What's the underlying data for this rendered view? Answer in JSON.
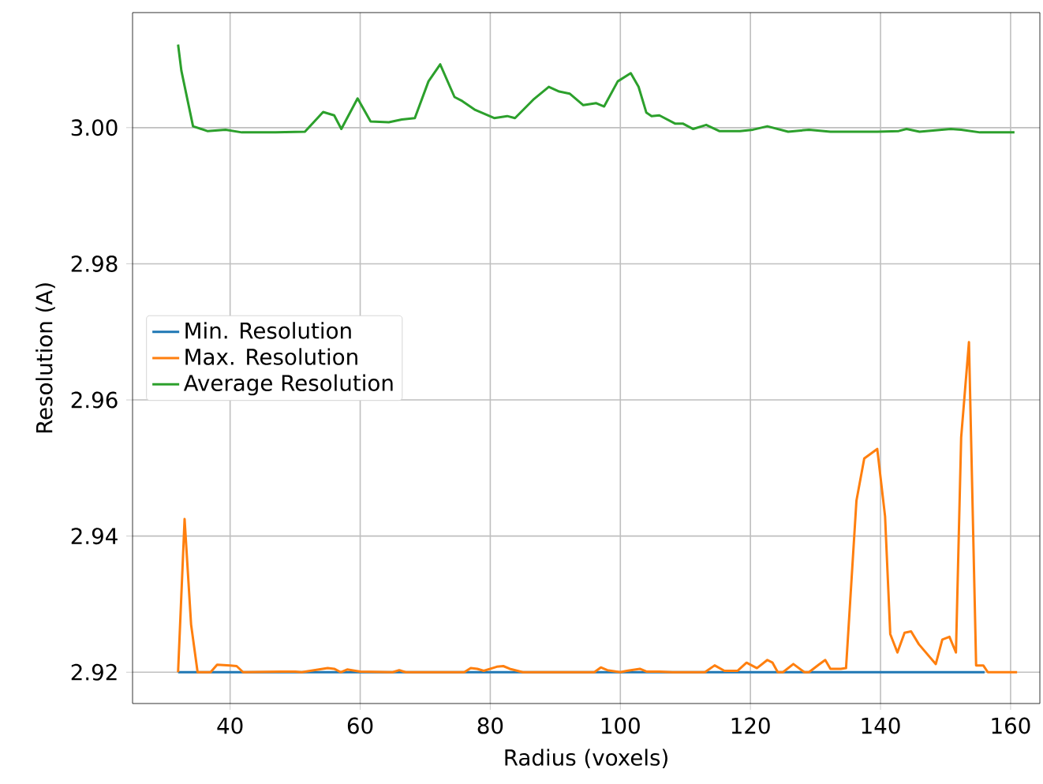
{
  "chart_data": {
    "type": "line",
    "xlabel": "Radius (voxels)",
    "ylabel": "Resolution (A)",
    "xlim": [
      25,
      164.5
    ],
    "ylim": [
      2.9154,
      3.0169
    ],
    "xticks": [
      40,
      60,
      80,
      100,
      120,
      140,
      160
    ],
    "yticks": [
      2.92,
      2.94,
      2.96,
      2.98,
      {
        "value": 3.0,
        "label": "3.00"
      }
    ],
    "grid": true,
    "legend": "center left",
    "series": [
      {
        "name": "Min. Resolution",
        "color": "#1f77b4",
        "x": [
          32,
          156
        ],
        "values": [
          2.92,
          2.92
        ]
      },
      {
        "name": "Max. Resolution",
        "color": "#ff7f0e",
        "x": [
          32,
          33,
          34,
          35,
          37,
          38,
          40,
          41,
          42,
          48,
          50,
          51,
          55,
          56,
          57,
          58,
          60,
          65,
          66,
          67,
          76,
          77,
          78,
          79,
          81,
          82,
          83,
          85,
          96,
          97,
          98,
          100,
          101,
          103,
          104,
          106,
          108,
          113,
          114.5,
          116,
          118,
          119.4,
          121,
          122.6,
          123.4,
          124.2,
          125,
          126.6,
          128.3,
          129,
          130.5,
          131.5,
          132.3,
          133.9,
          134.7,
          136.3,
          137.5,
          139.5,
          140.7,
          141.5,
          142.6,
          143.7,
          144.7,
          145.9,
          148.5,
          149.5,
          150.6,
          151.6,
          152.4,
          153.6,
          154.7,
          155.8,
          156.5,
          161
        ],
        "values": [
          2.92,
          2.9425,
          2.927,
          2.92,
          2.92,
          2.9211,
          2.921,
          2.9209,
          2.92,
          2.9201,
          2.9201,
          2.92,
          2.9206,
          2.9205,
          2.92,
          2.9204,
          2.9201,
          2.92,
          2.9203,
          2.92,
          2.92,
          2.9206,
          2.9205,
          2.9202,
          2.9208,
          2.9209,
          2.9205,
          2.92,
          2.92,
          2.9207,
          2.9203,
          2.92,
          2.9202,
          2.9205,
          2.9201,
          2.9201,
          2.92,
          2.92,
          2.921,
          2.9202,
          2.9202,
          2.9214,
          2.9206,
          2.9218,
          2.9214,
          2.92,
          2.92,
          2.9212,
          2.92,
          2.92,
          2.9211,
          2.9218,
          2.9205,
          2.9205,
          2.9206,
          2.9452,
          2.9514,
          2.9528,
          2.9429,
          2.9256,
          2.9229,
          2.9258,
          2.926,
          2.9241,
          2.9212,
          2.9248,
          2.9252,
          2.9229,
          2.9545,
          2.9685,
          2.921,
          2.921,
          2.92,
          2.92
        ]
      },
      {
        "name": "Average Resolution",
        "color": "#2ca02c",
        "x": [
          32,
          32.5,
          34.3,
          36.5,
          39.3,
          41.8,
          47,
          51.5,
          54.3,
          56,
          57.1,
          59.6,
          61.6,
          64.4,
          66.4,
          68.4,
          70.5,
          72.3,
          74.5,
          75.7,
          77.7,
          80.6,
          82.6,
          83.8,
          86.6,
          89,
          90.6,
          92.2,
          94.3,
          96.3,
          97.5,
          99.6,
          101.6,
          102.8,
          104,
          104.8,
          106,
          108.4,
          109.6,
          111.2,
          113.2,
          115.2,
          118.4,
          120.4,
          122.6,
          125.8,
          129,
          132.3,
          139.5,
          142.8,
          144,
          146,
          150.8,
          152.4,
          155.3,
          160.6
        ],
        "values": [
          3.0122,
          3.0084,
          3.0002,
          2.9995,
          2.9997,
          2.9993,
          2.9993,
          2.9994,
          3.0023,
          3.0018,
          2.9998,
          3.0043,
          3.0009,
          3.0008,
          3.0012,
          3.0014,
          3.0068,
          3.0093,
          3.0045,
          3.0039,
          3.0026,
          3.0014,
          3.0017,
          3.0014,
          3.0041,
          3.006,
          3.0053,
          3.005,
          3.0033,
          3.0036,
          3.0031,
          3.0068,
          3.008,
          3.006,
          3.0022,
          3.0017,
          3.0018,
          3.0006,
          3.0006,
          2.9998,
          3.0004,
          2.9995,
          2.9995,
          2.9997,
          3.0002,
          2.9994,
          2.9997,
          2.9994,
          2.9994,
          2.9995,
          2.9998,
          2.9994,
          2.9998,
          2.9997,
          2.9993,
          2.9993
        ]
      }
    ]
  }
}
